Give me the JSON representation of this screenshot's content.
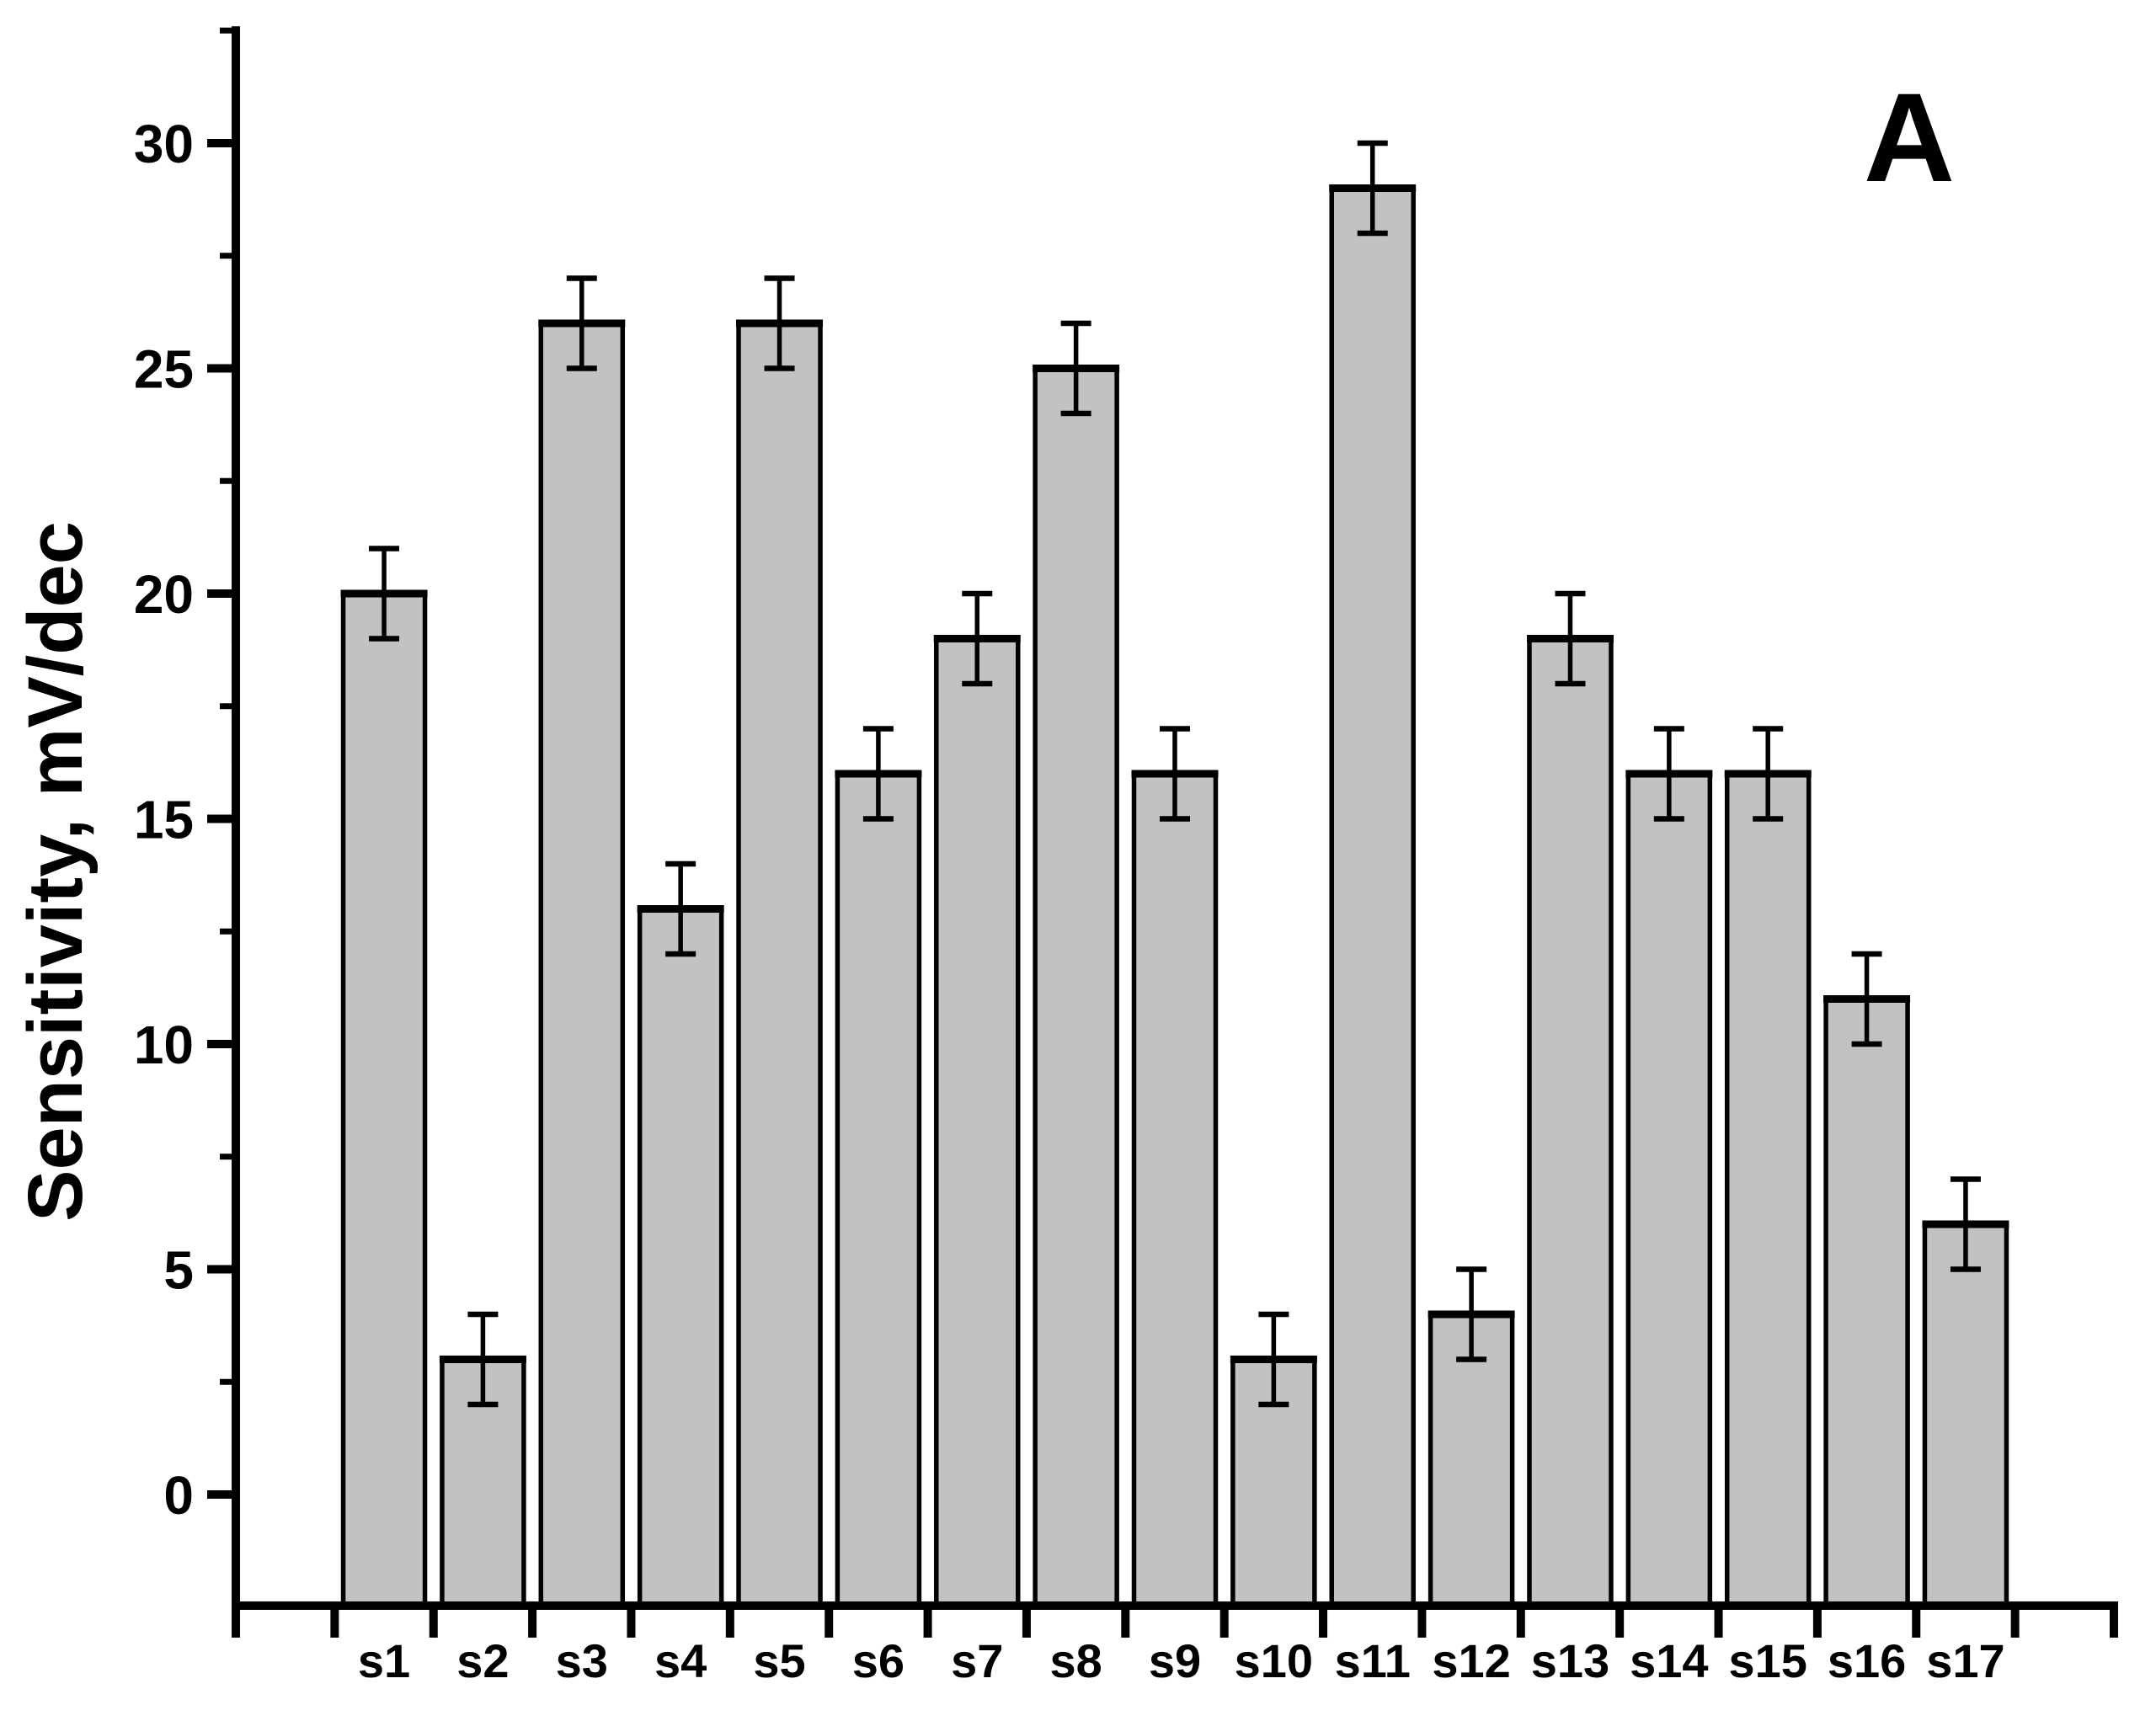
{
  "chart_data": {
    "type": "bar",
    "panel_label": "A",
    "title": "",
    "xlabel": "",
    "ylabel": "Sensitivity, mV/dec",
    "categories": [
      "s1",
      "s2",
      "s3",
      "s4",
      "s5",
      "s6",
      "s7",
      "s8",
      "s9",
      "s10",
      "s11",
      "s12",
      "s13",
      "s14",
      "s15",
      "s16",
      "s17"
    ],
    "values": [
      20,
      3,
      26,
      13,
      26,
      16,
      19,
      25,
      16,
      3,
      29,
      4,
      19,
      16,
      16,
      11,
      6
    ],
    "errors": [
      1,
      1,
      1,
      1,
      1,
      1,
      1,
      1,
      1,
      1,
      1,
      1,
      1,
      1,
      1,
      1,
      1
    ],
    "yticks": [
      0,
      5,
      10,
      15,
      20,
      25,
      30
    ],
    "minor_yticks": [
      2.5,
      7.5,
      12.5,
      17.5,
      22.5,
      27.5,
      32.5
    ],
    "ylim": [
      -2.5,
      32.6
    ],
    "grid": false,
    "legend": null,
    "colors": {
      "bar_fill": "#c2c2c2",
      "bar_stroke": "#000000",
      "axis": "#000000",
      "background": "#ffffff"
    }
  }
}
